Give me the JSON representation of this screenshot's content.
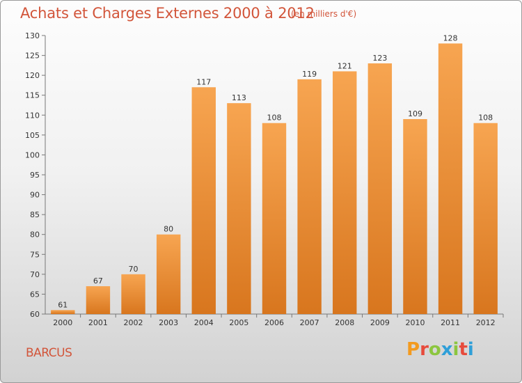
{
  "header": {
    "title": "Achats et Charges Externes 2000 à 2012",
    "unit": "(en milliers d'€)"
  },
  "footer": {
    "commune": "BARCUS",
    "logo_text": "Proxiti"
  },
  "colors": {
    "title": "#d2553a",
    "bar_light": "#f7a551",
    "bar_dark": "#d8761e",
    "logo_letters": [
      "#f39a1f",
      "#e74b3c",
      "#8cc63f",
      "#2f9fd8",
      "#8cc63f",
      "#e74b3c",
      "#2f9fd8"
    ]
  },
  "chart_data": {
    "type": "bar",
    "title": "Achats et Charges Externes 2000 à 2012",
    "xlabel": "",
    "ylabel": "",
    "categories": [
      "2000",
      "2001",
      "2002",
      "2003",
      "2004",
      "2005",
      "2006",
      "2007",
      "2008",
      "2009",
      "2010",
      "2011",
      "2012"
    ],
    "values": [
      61,
      67,
      70,
      80,
      117,
      113,
      108,
      119,
      121,
      123,
      109,
      128,
      108
    ],
    "ylim": [
      60,
      130
    ],
    "yticks": [
      60,
      65,
      70,
      75,
      80,
      85,
      90,
      95,
      100,
      105,
      110,
      115,
      120,
      125,
      130
    ],
    "grid": false,
    "legend": "none"
  }
}
